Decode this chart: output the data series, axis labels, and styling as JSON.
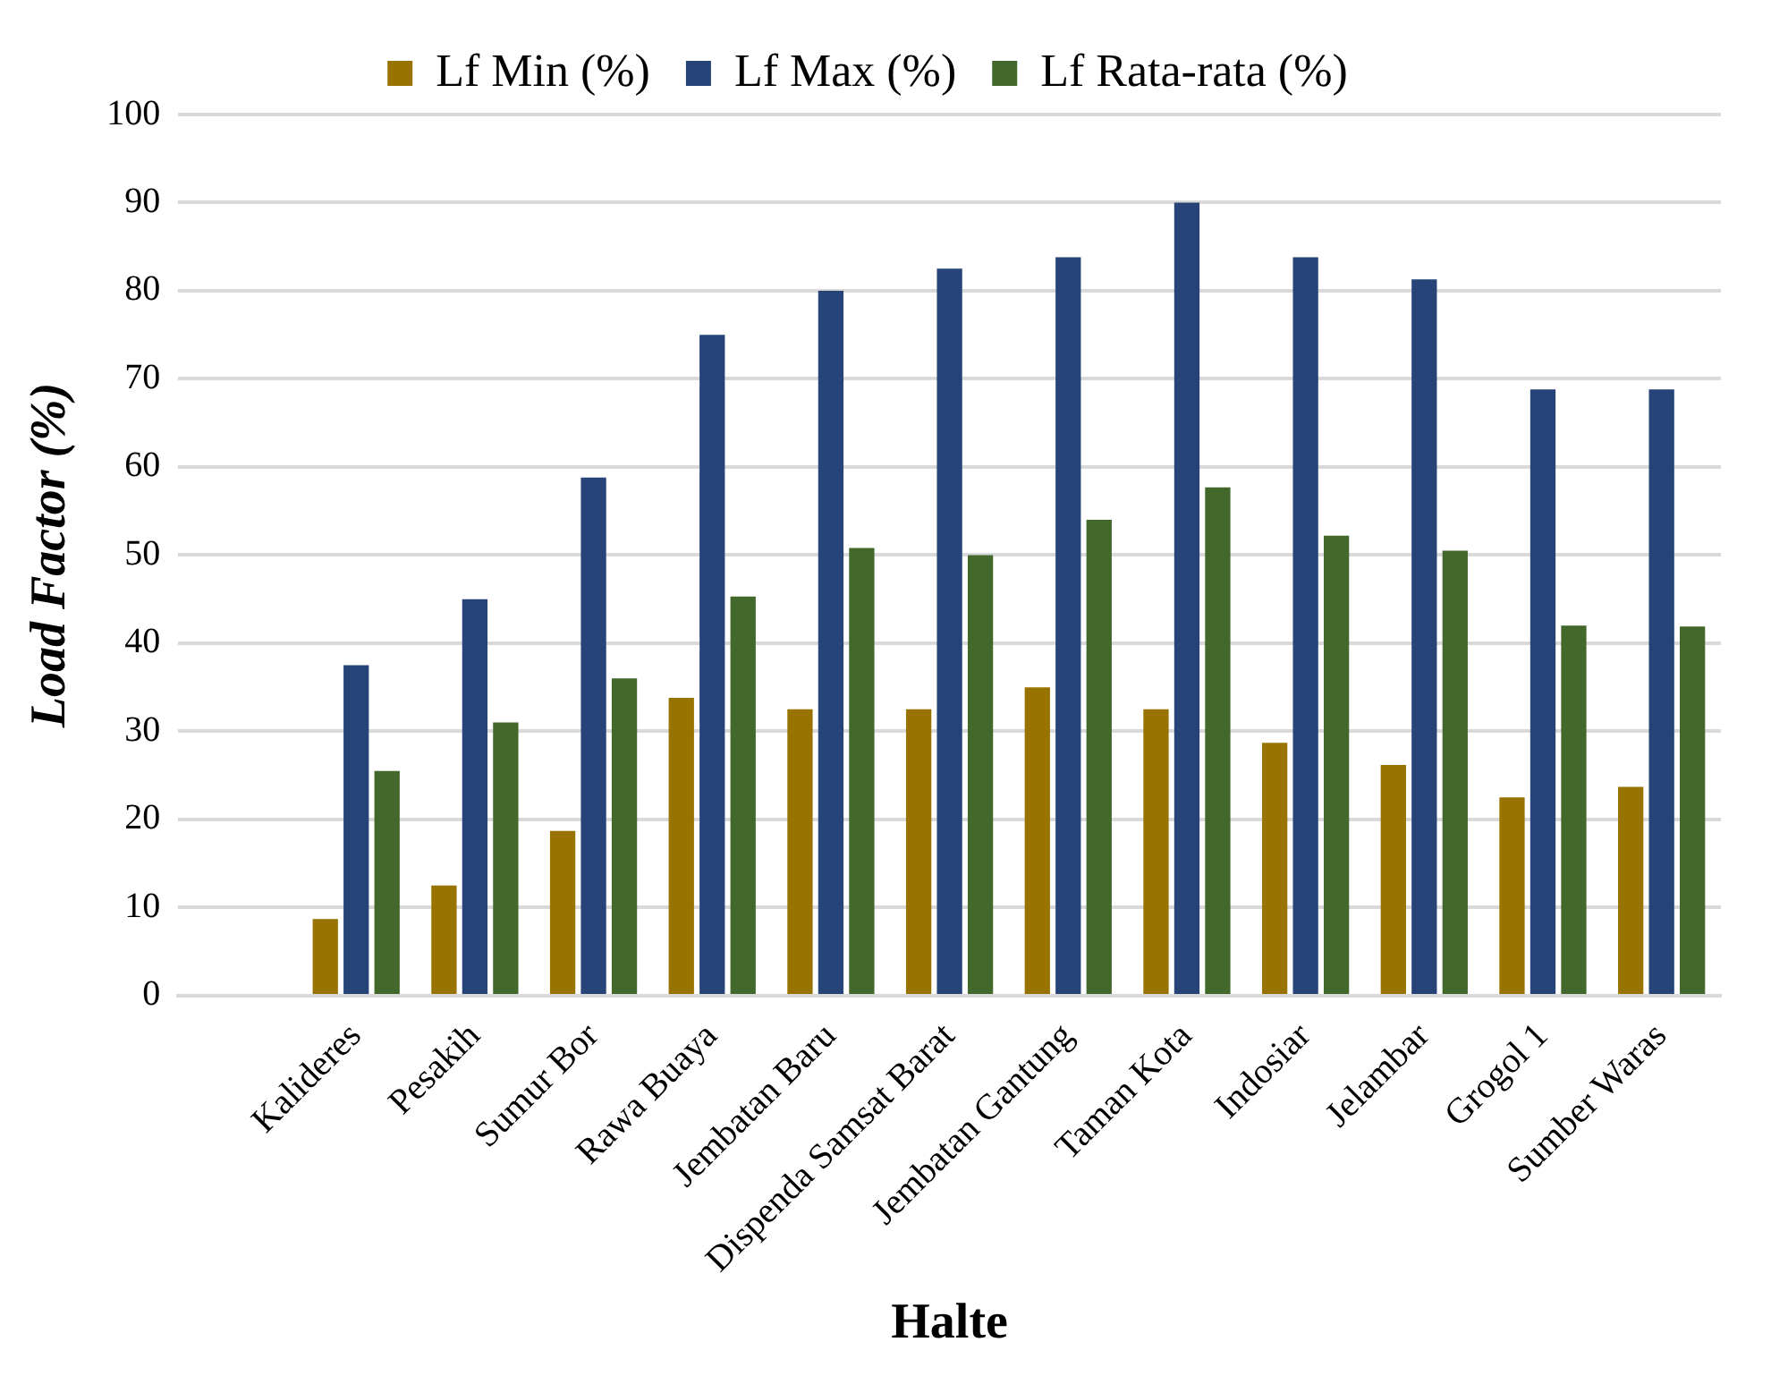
{
  "chart_data": {
    "type": "bar",
    "xlabel": "Halte",
    "ylabel": "Load Factor (%)",
    "categories": [
      null,
      "Kalideres",
      "Pesakih",
      "Sumur Bor",
      "Rawa Buaya",
      "Jembatan Baru",
      "Dispenda Samsat Barat",
      "Jembatan Gantung",
      "Taman Kota",
      "Indosiar",
      "Jelambar",
      "Grogol 1",
      "Sumber Waras"
    ],
    "series": [
      {
        "name": "Lf Min (%)",
        "color": "#997300",
        "values": [
          null,
          8.7,
          12.5,
          18.7,
          33.8,
          32.5,
          32.5,
          35,
          32.5,
          28.7,
          26.2,
          22.5,
          23.7
        ]
      },
      {
        "name": "Lf Max (%)",
        "color": "#264478",
        "values": [
          null,
          37.5,
          45,
          58.8,
          75,
          80,
          82.5,
          83.8,
          90,
          83.8,
          81.3,
          68.8,
          68.8
        ]
      },
      {
        "name": "Lf Rata-rata (%)",
        "color": "#43682b",
        "values": [
          null,
          25.5,
          31,
          36,
          45.3,
          50.8,
          50,
          54,
          57.7,
          52.2,
          50.5,
          42,
          41.9
        ]
      }
    ],
    "ylim": [
      0,
      100
    ],
    "yticks": [
      0,
      10,
      20,
      30,
      40,
      50,
      60,
      70,
      80,
      90,
      100
    ],
    "grid": "y",
    "legend": "top"
  }
}
